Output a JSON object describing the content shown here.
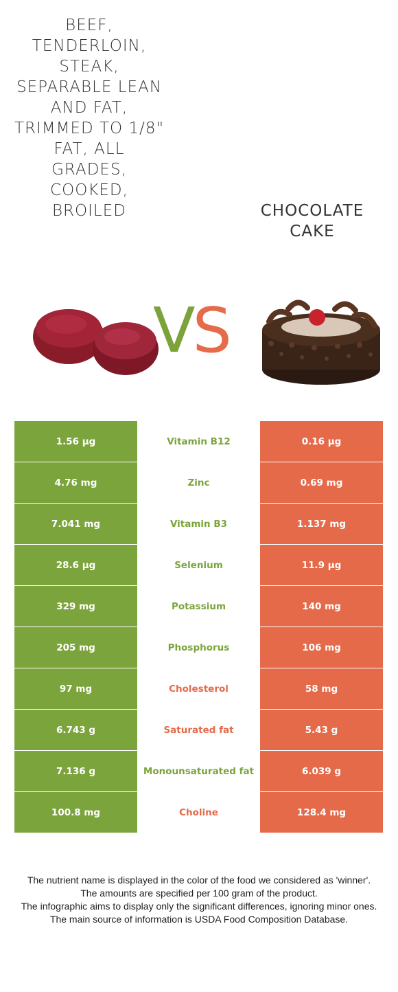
{
  "left_food": {
    "name": "BEEF, TENDERLOIN, STEAK, SEPARABLE LEAN AND FAT, TRIMMED TO 1/8\" FAT, ALL GRADES, COOKED, BROILED",
    "color": "#7ca43c",
    "icon": "beef-steak-image"
  },
  "right_food": {
    "name": "CHOCOLATE CAKE",
    "color": "#e46a4a",
    "icon": "chocolate-cake-image"
  },
  "vs": {
    "v": "V",
    "s": "S"
  },
  "rows": [
    {
      "left": "1.56 µg",
      "nutrient": "Vitamin B12",
      "right": "0.16 µg",
      "winner": "left"
    },
    {
      "left": "4.76 mg",
      "nutrient": "Zinc",
      "right": "0.69 mg",
      "winner": "left"
    },
    {
      "left": "7.041 mg",
      "nutrient": "Vitamin B3",
      "right": "1.137 mg",
      "winner": "left"
    },
    {
      "left": "28.6 µg",
      "nutrient": "Selenium",
      "right": "11.9 µg",
      "winner": "left"
    },
    {
      "left": "329 mg",
      "nutrient": "Potassium",
      "right": "140 mg",
      "winner": "left"
    },
    {
      "left": "205 mg",
      "nutrient": "Phosphorus",
      "right": "106 mg",
      "winner": "left"
    },
    {
      "left": "97 mg",
      "nutrient": "Cholesterol",
      "right": "58 mg",
      "winner": "right"
    },
    {
      "left": "6.743 g",
      "nutrient": "Saturated fat",
      "right": "5.43 g",
      "winner": "right"
    },
    {
      "left": "7.136 g",
      "nutrient": "Monounsaturated fat",
      "right": "6.039 g",
      "winner": "left"
    },
    {
      "left": "100.8 mg",
      "nutrient": "Choline",
      "right": "128.4 mg",
      "winner": "right"
    }
  ],
  "footer": [
    "The nutrient name is displayed in the color of the food we considered as 'winner'.",
    "The amounts are specified per 100 gram of the product.",
    "The infographic aims to display only the significant differences, ignoring minor ones.",
    "The main source of information is USDA Food Composition Database."
  ]
}
